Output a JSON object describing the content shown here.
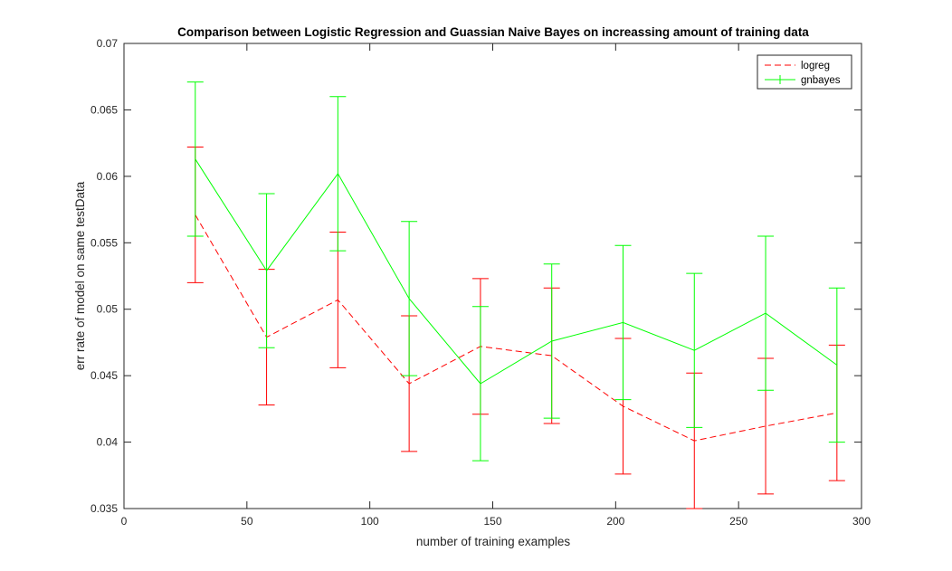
{
  "chart_data": {
    "type": "line",
    "title": "Comparison between Logistic Regression and Guassian Naive Bayes on increassing amount of training data",
    "xlabel": "number of training examples",
    "ylabel": "err rate of model on same testData",
    "xlim": [
      0,
      300
    ],
    "ylim": [
      0.035,
      0.07
    ],
    "xticks": [
      0,
      50,
      100,
      150,
      200,
      250,
      300
    ],
    "xtick_labels": [
      "0",
      "50",
      "100",
      "150",
      "200",
      "250",
      "300"
    ],
    "yticks": [
      0.035,
      0.04,
      0.045,
      0.05,
      0.055,
      0.06,
      0.065,
      0.07
    ],
    "ytick_labels": [
      "0.035",
      "0.04",
      "0.045",
      "0.05",
      "0.055",
      "0.06",
      "0.065",
      "0.07"
    ],
    "grid": false,
    "legend_position": "top-right",
    "series": [
      {
        "name": "logreg",
        "color": "#ff0000",
        "line_style": "dashed",
        "x": [
          29,
          58,
          87,
          116,
          145,
          174,
          203,
          232,
          261,
          290
        ],
        "y": [
          0.0571,
          0.0479,
          0.0507,
          0.0444,
          0.0472,
          0.0465,
          0.0427,
          0.0401,
          0.0412,
          0.0422
        ],
        "err": [
          0.0051,
          0.0051,
          0.0051,
          0.0051,
          0.0051,
          0.0051,
          0.0051,
          0.0051,
          0.0051,
          0.0051
        ]
      },
      {
        "name": "gnbayes",
        "color": "#00ff00",
        "line_style": "solid",
        "x": [
          29,
          58,
          87,
          116,
          145,
          174,
          203,
          232,
          261,
          290
        ],
        "y": [
          0.0613,
          0.0529,
          0.0602,
          0.0508,
          0.0444,
          0.0476,
          0.049,
          0.0469,
          0.0497,
          0.0458
        ],
        "err": [
          0.0058,
          0.0058,
          0.0058,
          0.0058,
          0.0058,
          0.0058,
          0.0058,
          0.0058,
          0.0058,
          0.0058
        ]
      }
    ]
  }
}
